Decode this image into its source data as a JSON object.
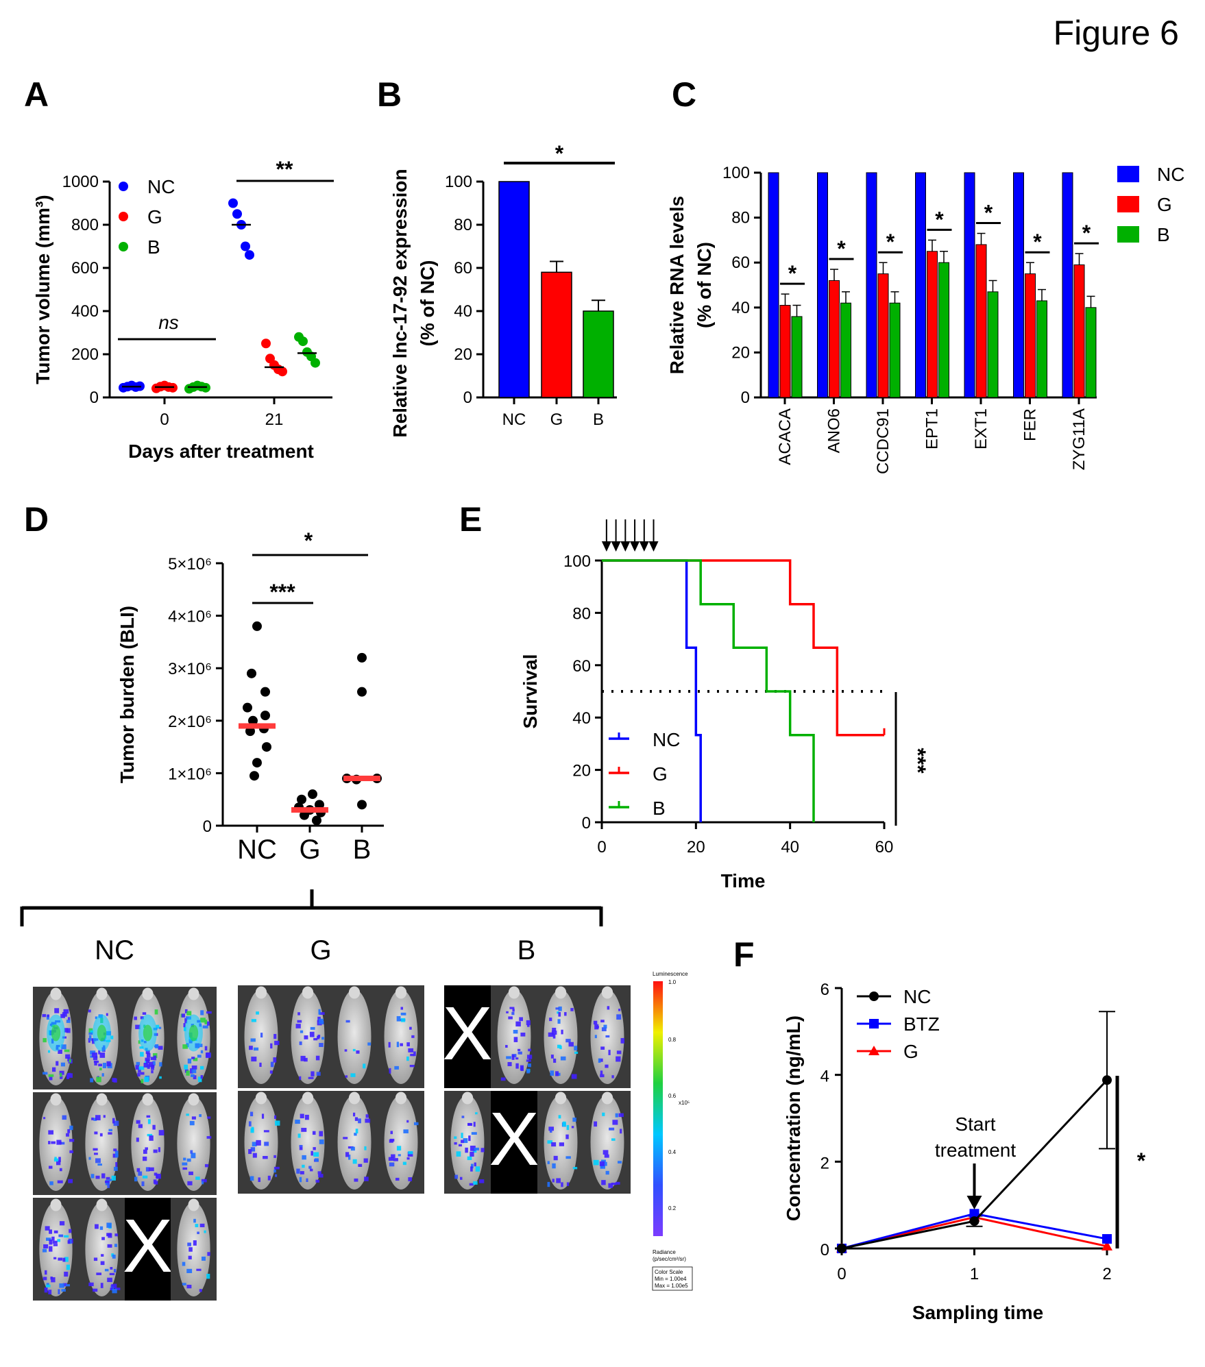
{
  "figure_label": "Figure 6",
  "panels": {
    "A": "A",
    "B": "B",
    "C": "C",
    "D": "D",
    "E": "E",
    "F": "F"
  },
  "colors": {
    "NC": "#0000ff",
    "G": "#ff0000",
    "B": "#00b000",
    "BTZ": "#0000ff",
    "NC_F": "#000000",
    "sig_bar": "#000000",
    "median_D": "#ff3b3b"
  },
  "chart_data": [
    {
      "id": "A",
      "type": "scatter",
      "ylabel": "Tumor volume (mm³)",
      "xlabel": "Days after treatment",
      "categories": [
        "0",
        "21"
      ],
      "yticks": [
        "0",
        "200",
        "400",
        "600",
        "800",
        "1000"
      ],
      "ylim": [
        0,
        1000
      ],
      "legend": [
        "NC",
        "G",
        "B"
      ],
      "series": [
        {
          "name": "NC",
          "values": [
            [
              45,
              50,
              55,
              48,
              52
            ],
            [
              900,
              850,
              800,
              700,
              660
            ]
          ],
          "median": [
            50,
            800
          ]
        },
        {
          "name": "G",
          "values": [
            [
              42,
              50,
              55,
              48,
              45
            ],
            [
              250,
              180,
              150,
              130,
              120
            ]
          ],
          "median": [
            48,
            140
          ]
        },
        {
          "name": "B",
          "values": [
            [
              40,
              48,
              55,
              50,
              45
            ],
            [
              280,
              260,
              210,
              190,
              160
            ]
          ],
          "median": [
            48,
            205
          ]
        }
      ],
      "annotations": [
        "ns",
        "**"
      ]
    },
    {
      "id": "B",
      "type": "bar",
      "ylabel": "Relative lnc-17-92 expression (% of NC)",
      "categories": [
        "NC",
        "G",
        "B"
      ],
      "values": [
        100,
        58,
        40
      ],
      "errors": [
        0,
        5,
        5
      ],
      "yticks": [
        "0",
        "20",
        "40",
        "60",
        "80",
        "100"
      ],
      "ylim": [
        0,
        100
      ],
      "annotations": [
        "*"
      ]
    },
    {
      "id": "C",
      "type": "bar",
      "ylabel": "Relative RNA levels (% of NC)",
      "categories": [
        "ACACA",
        "ANO6",
        "CCDC91",
        "EPT1",
        "EXT1",
        "FER",
        "ZYG11A"
      ],
      "series": [
        {
          "name": "NC",
          "values": [
            100,
            100,
            100,
            100,
            100,
            100,
            100
          ]
        },
        {
          "name": "G",
          "values": [
            41,
            52,
            55,
            65,
            68,
            55,
            59
          ],
          "errors": [
            5,
            5,
            5,
            5,
            5,
            5,
            5
          ]
        },
        {
          "name": "B",
          "values": [
            36,
            42,
            42,
            60,
            47,
            43,
            40
          ],
          "errors": [
            5,
            5,
            5,
            5,
            5,
            5,
            5
          ]
        }
      ],
      "yticks": [
        "0",
        "20",
        "40",
        "60",
        "80",
        "100"
      ],
      "ylim": [
        0,
        100
      ],
      "annotations": [
        "*",
        "*",
        "*",
        "*",
        "*",
        "*",
        "*"
      ]
    },
    {
      "id": "D",
      "type": "scatter",
      "ylabel": "Tumor burden (BLI)",
      "categories": [
        "NC",
        "G",
        "B"
      ],
      "yticks": [
        "0",
        "1×10⁶",
        "2×10⁶",
        "3×10⁶",
        "4×10⁶",
        "5×10⁶"
      ],
      "ylim": [
        0,
        5000000
      ],
      "series": [
        {
          "name": "NC",
          "values": [
            3800000,
            2900000,
            2550000,
            2250000,
            2100000,
            2000000,
            1850000,
            1800000,
            1500000,
            1200000,
            950000
          ],
          "median": 1900000
        },
        {
          "name": "G",
          "values": [
            600000,
            500000,
            400000,
            350000,
            300000,
            250000,
            200000,
            100000
          ],
          "median": 300000
        },
        {
          "name": "B",
          "values": [
            3200000,
            2550000,
            900000,
            880000,
            900000,
            400000
          ],
          "median": 900000
        }
      ],
      "annotations": [
        "***",
        "*"
      ]
    },
    {
      "id": "E",
      "type": "line",
      "ylabel": "Survival",
      "xlabel": "Time",
      "xticks": [
        "0",
        "20",
        "40",
        "60"
      ],
      "yticks": [
        "0",
        "20",
        "40",
        "60",
        "80",
        "100"
      ],
      "xlim": [
        0,
        60
      ],
      "ylim": [
        0,
        100
      ],
      "dosing_days": [
        1,
        3,
        5,
        7,
        9,
        11
      ],
      "median_line": 50,
      "series": [
        {
          "name": "NC",
          "x": [
            0,
            18,
            18,
            20,
            20,
            21,
            21
          ],
          "y": [
            100,
            100,
            66.7,
            66.7,
            33.3,
            33.3,
            0
          ]
        },
        {
          "name": "G",
          "x": [
            0,
            40,
            40,
            45,
            45,
            50,
            50,
            60
          ],
          "y": [
            100,
            100,
            83.3,
            83.3,
            66.7,
            66.7,
            33.3,
            33.3
          ]
        },
        {
          "name": "B",
          "x": [
            0,
            21,
            21,
            28,
            28,
            35,
            35,
            40,
            40,
            45,
            45
          ],
          "y": [
            100,
            100,
            83.3,
            83.3,
            66.7,
            66.7,
            50,
            50,
            33.3,
            33.3,
            0
          ]
        }
      ],
      "annotations": [
        "***"
      ]
    },
    {
      "id": "F",
      "type": "line",
      "ylabel": "Concentration (ng/mL)",
      "xlabel": "Sampling time",
      "xticks": [
        "0",
        "1",
        "2"
      ],
      "yticks": [
        "0",
        "2",
        "4",
        "6"
      ],
      "xlim": [
        0,
        2
      ],
      "ylim": [
        0,
        6
      ],
      "series": [
        {
          "name": "NC",
          "x": [
            0,
            1,
            2
          ],
          "y": [
            0,
            0.63,
            3.88
          ],
          "errors": [
            0,
            0.12,
            1.58
          ]
        },
        {
          "name": "BTZ",
          "x": [
            0,
            1,
            2
          ],
          "y": [
            0,
            0.8,
            0.22
          ]
        },
        {
          "name": "G",
          "x": [
            0,
            1,
            2
          ],
          "y": [
            0,
            0.72,
            0.05
          ]
        }
      ],
      "annotation_text": [
        "Start",
        "treatment"
      ],
      "annotations": [
        "*"
      ]
    }
  ],
  "imaging": {
    "groups": [
      "NC",
      "G",
      "B"
    ],
    "scale": {
      "title": "Luminescence",
      "max": "1.0",
      "ticks": [
        "0.8",
        "0.6",
        "0.4",
        "0.2"
      ],
      "exp": "x10⁵",
      "radiance": "Radiance",
      "units": "(p/sec/cm²/sr)",
      "box": [
        "Color Scale",
        "Min = 1.00e4",
        "Max = 1.00e5"
      ]
    },
    "excluded_mark": "X"
  }
}
